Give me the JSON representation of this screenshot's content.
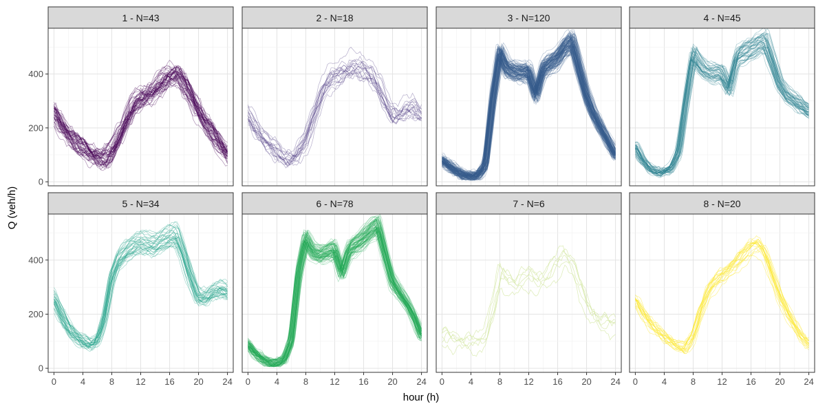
{
  "chart_data": {
    "type": "line",
    "xlabel": "hour (h)",
    "ylabel": "Q (veh/h)",
    "xlim": [
      -0.8,
      24.8
    ],
    "ylim": [
      -15,
      570
    ],
    "x_ticks": [
      0,
      4,
      8,
      12,
      16,
      20,
      24
    ],
    "x_tick_labels": [
      "0",
      "4",
      "8",
      "12",
      "16",
      "20",
      "24"
    ],
    "y_ticks": [
      0,
      200,
      400
    ],
    "y_tick_labels": [
      "0",
      "200",
      "400"
    ],
    "grid": true,
    "layout": "facet 2 rows x 4 columns",
    "x_profile_hours": [
      0,
      1,
      2,
      3,
      4,
      5,
      6,
      7,
      8,
      9,
      10,
      11,
      12,
      13,
      14,
      15,
      16,
      17,
      18,
      19,
      20,
      21,
      22,
      23,
      24
    ],
    "facets": [
      {
        "title": "1 - N=43",
        "color": "#440154",
        "n_curves": 43,
        "spread": 35,
        "opacity": 0.45,
        "profile": [
          255,
          210,
          175,
          145,
          125,
          105,
          90,
          82,
          110,
          170,
          230,
          285,
          310,
          325,
          345,
          370,
          395,
          405,
          365,
          315,
          260,
          215,
          175,
          135,
          100
        ]
      },
      {
        "title": "2 - N=18",
        "color": "#46337E",
        "n_curves": 18,
        "spread": 35,
        "opacity": 0.4,
        "profile": [
          250,
          205,
          170,
          135,
          110,
          90,
          80,
          100,
          150,
          230,
          310,
          365,
          395,
          410,
          420,
          425,
          425,
          405,
          360,
          300,
          250,
          250,
          265,
          280,
          250
        ]
      },
      {
        "title": "3 - N=120",
        "color": "#365C8D",
        "n_curves": 120,
        "spread": 18,
        "opacity": 0.35,
        "profile": [
          80,
          60,
          40,
          25,
          20,
          25,
          60,
          300,
          480,
          420,
          410,
          405,
          410,
          320,
          420,
          440,
          460,
          500,
          520,
          420,
          320,
          250,
          200,
          150,
          100
        ]
      },
      {
        "title": "4 - N=45",
        "color": "#277F8E",
        "n_curves": 45,
        "spread": 16,
        "opacity": 0.4,
        "profile": [
          130,
          80,
          50,
          35,
          35,
          50,
          110,
          300,
          470,
          430,
          405,
          400,
          400,
          340,
          460,
          480,
          490,
          510,
          520,
          440,
          360,
          320,
          300,
          280,
          260
        ]
      },
      {
        "title": "5 - N=34",
        "color": "#1FA187",
        "n_curves": 34,
        "spread": 20,
        "opacity": 0.4,
        "profile": [
          260,
          200,
          150,
          120,
          100,
          85,
          100,
          180,
          330,
          400,
          430,
          450,
          460,
          455,
          455,
          470,
          480,
          490,
          420,
          330,
          260,
          260,
          280,
          290,
          280
        ]
      },
      {
        "title": "6 - N=78",
        "color": "#23A955",
        "n_curves": 78,
        "spread": 16,
        "opacity": 0.35,
        "profile": [
          90,
          55,
          35,
          20,
          18,
          30,
          100,
          350,
          480,
          430,
          420,
          430,
          440,
          350,
          440,
          460,
          480,
          510,
          530,
          420,
          320,
          280,
          240,
          190,
          120
        ]
      },
      {
        "title": "7 - N=6",
        "color": "#D5E8A6",
        "n_curves": 6,
        "spread": 40,
        "opacity": 0.85,
        "profile": [
          120,
          110,
          100,
          100,
          95,
          90,
          120,
          230,
          350,
          320,
          310,
          330,
          340,
          320,
          330,
          360,
          390,
          420,
          380,
          300,
          230,
          190,
          170,
          165,
          160
        ]
      },
      {
        "title": "8 - N=20",
        "color": "#FDE725",
        "n_curves": 20,
        "spread": 22,
        "opacity": 0.5,
        "profile": [
          255,
          210,
          170,
          140,
          120,
          100,
          80,
          75,
          120,
          210,
          280,
          320,
          345,
          365,
          390,
          420,
          450,
          460,
          420,
          340,
          270,
          210,
          160,
          120,
          90
        ]
      }
    ]
  }
}
